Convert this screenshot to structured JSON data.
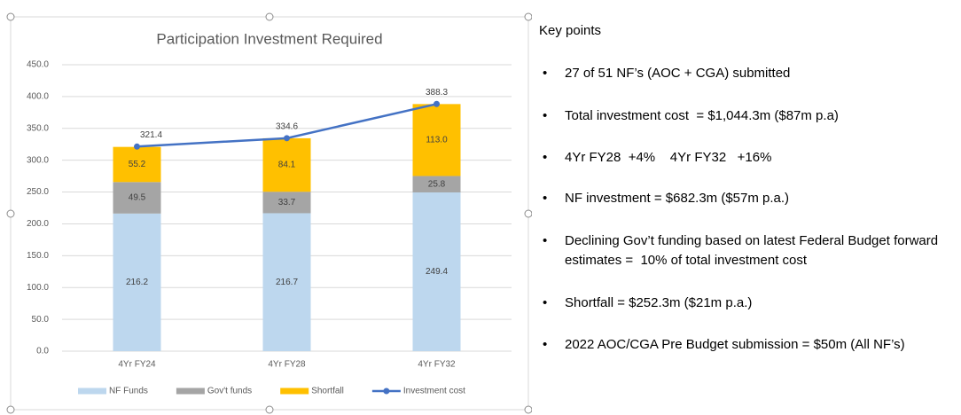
{
  "chart_data": {
    "type": "bar",
    "stacked": true,
    "title": "Participation Investment Required",
    "categories": [
      "4Yr FY24",
      "4Yr FY28",
      "4Yr FY32"
    ],
    "series": [
      {
        "name": "NF Funds",
        "color": "#bdd7ee",
        "values": [
          216.2,
          216.7,
          249.4
        ]
      },
      {
        "name": "Gov't funds",
        "color": "#a5a5a5",
        "values": [
          49.5,
          33.7,
          25.8
        ]
      },
      {
        "name": "Shortfall",
        "color": "#ffc000",
        "values": [
          55.2,
          84.1,
          113
        ],
        "value_labels": [
          "55.2",
          "84.1",
          "113.0"
        ]
      },
      {
        "name": "Investment cost",
        "color": "#4472c4",
        "type": "line",
        "values": [
          321.4,
          334.6,
          388.3
        ]
      }
    ],
    "ylim": [
      0,
      450
    ],
    "yticks": [
      {
        "value": 0,
        "label": "0.0"
      },
      {
        "value": 50,
        "label": "50.0"
      },
      {
        "value": 100,
        "label": "100.0"
      },
      {
        "value": 150,
        "label": "150.0"
      },
      {
        "value": 200,
        "label": "200.0"
      },
      {
        "value": 250,
        "label": "250.0"
      },
      {
        "value": 300,
        "label": "300.0"
      },
      {
        "value": 350,
        "label": "350.0"
      },
      {
        "value": 400,
        "label": "400.0"
      },
      {
        "value": 450,
        "label": "450.0"
      }
    ],
    "grid": true,
    "legend": "bottom"
  },
  "key_points": {
    "title": "Key points",
    "items": [
      "27 of 51 NF’s (AOC + CGA) submitted",
      "Total investment cost  = $1,044.3m ($87m p.a)",
      "4Yr FY28  +4%    4Yr FY32   +16%",
      "NF investment = $682.3m ($57m p.a.)",
      "Declining Gov’t funding based on latest Federal Budget forward estimates =  10% of total investment cost",
      "Shortfall = $252.3m ($21m p.a.)",
      "2022 AOC/CGA Pre Budget submission = $50m (All NF’s)"
    ]
  }
}
